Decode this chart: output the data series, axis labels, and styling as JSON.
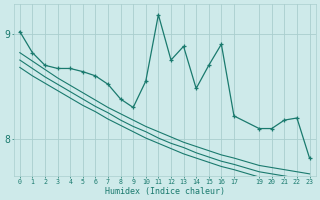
{
  "xlabel": "Humidex (Indice chaleur)",
  "bg_color": "#ceeaea",
  "grid_color": "#aacece",
  "line_color": "#1a7a6e",
  "x_values": [
    0,
    1,
    2,
    3,
    4,
    5,
    6,
    7,
    8,
    9,
    10,
    11,
    12,
    13,
    14,
    15,
    16,
    17,
    19,
    20,
    21,
    22,
    23
  ],
  "y_main": [
    9.02,
    8.82,
    8.7,
    8.67,
    8.67,
    8.64,
    8.6,
    8.52,
    8.38,
    8.3,
    8.55,
    9.18,
    8.75,
    8.88,
    8.48,
    8.7,
    8.9,
    8.22,
    8.1,
    8.1,
    8.18,
    8.2,
    7.82
  ],
  "y_line1": [
    8.82,
    8.74,
    8.66,
    8.58,
    8.51,
    8.44,
    8.37,
    8.3,
    8.24,
    8.18,
    8.12,
    8.07,
    8.02,
    7.97,
    7.93,
    7.89,
    7.85,
    7.82,
    7.75,
    7.73,
    7.71,
    7.69,
    7.67
  ],
  "y_line2": [
    8.75,
    8.67,
    8.59,
    8.52,
    8.45,
    8.38,
    8.31,
    8.25,
    8.18,
    8.12,
    8.07,
    8.01,
    7.96,
    7.92,
    7.87,
    7.83,
    7.79,
    7.76,
    7.69,
    7.67,
    7.65,
    7.63,
    7.61
  ],
  "y_line3": [
    8.68,
    8.6,
    8.53,
    8.46,
    8.39,
    8.32,
    8.26,
    8.19,
    8.13,
    8.07,
    8.01,
    7.96,
    7.91,
    7.86,
    7.82,
    7.78,
    7.74,
    7.71,
    7.64,
    7.62,
    7.6,
    7.58,
    7.56
  ],
  "ylim": [
    7.65,
    9.28
  ],
  "yticks": [
    8.0,
    9.0
  ],
  "xlim": [
    -0.5,
    23.5
  ],
  "xticks": [
    0,
    1,
    2,
    3,
    4,
    5,
    6,
    7,
    8,
    9,
    10,
    11,
    12,
    13,
    14,
    15,
    16,
    17,
    19,
    20,
    21,
    22,
    23
  ]
}
